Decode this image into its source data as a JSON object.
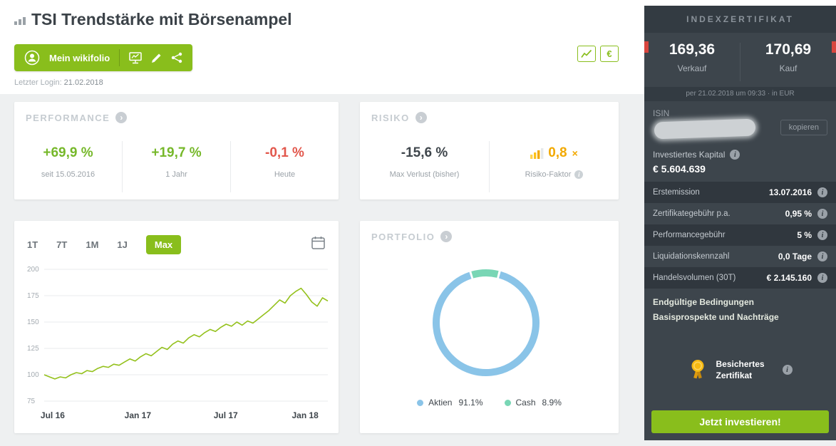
{
  "colors": {
    "brand_green": "#89be1c",
    "positive_green": "#76b82a",
    "negative_red": "#e2574c",
    "risk_orange": "#f2a900",
    "aktien_blue": "#8ac4e8",
    "cash_teal": "#79d6b5",
    "sidebar_bg": "#3d454c",
    "ribbon_red": "#d8453e"
  },
  "header": {
    "title": "TSI Trendstärke mit Börsenampel",
    "my_wikifolio_label": "Mein wikifolio",
    "last_login_label": "Letzter Login:",
    "last_login_value": "21.02.2018",
    "euro_symbol": "€"
  },
  "performance": {
    "header": "PERFORMANCE",
    "items": [
      {
        "value": "+69,9 %",
        "label": "seit 15.05.2016"
      },
      {
        "value": "+19,7 %",
        "label": "1 Jahr"
      },
      {
        "value": "-0,1 %",
        "label": "Heute"
      }
    ]
  },
  "risiko": {
    "header": "RISIKO",
    "max_loss_value": "-15,6 %",
    "max_loss_label": "Max Verlust (bisher)",
    "risk_factor_value": "0,8",
    "risk_factor_multiplier": "×",
    "risk_factor_label": "Risiko-Faktor"
  },
  "chart_card": {
    "ranges": [
      "1T",
      "7T",
      "1M",
      "1J",
      "Max"
    ],
    "active_range": "Max"
  },
  "portfolio": {
    "header": "PORTFOLIO"
  },
  "sidebar": {
    "header": "INDEXZERTIFIKAT",
    "sell": {
      "value": "169,36",
      "label": "Verkauf"
    },
    "buy": {
      "value": "170,69",
      "label": "Kauf"
    },
    "quote_info": "per 21.02.2018 um 09:33 · in EUR",
    "isin_label": "ISIN",
    "copy_button": "kopieren",
    "invested_label": "Investiertes Kapital",
    "invested_value": "€ 5.604.639",
    "rows": [
      {
        "label": "Erstemission",
        "value": "13.07.2016"
      },
      {
        "label": "Zertifikategebühr p.a.",
        "value": "0,95 %"
      },
      {
        "label": "Performancegebühr",
        "value": "5 %"
      },
      {
        "label": "Liquidationskennzahl",
        "value": "0,0 Tage"
      },
      {
        "label": "Handelsvolumen (30T)",
        "value": "€ 2.145.160"
      }
    ],
    "links": [
      "Endgültige Bedingungen",
      "Basisprospekte und Nachträge"
    ],
    "secured_label": "Besichertes Zertifikat",
    "invest_button": "Jetzt investieren!"
  },
  "chart_data": [
    {
      "type": "line",
      "title": "Performance seit Emission (indexiert, Start = 100)",
      "color": "#94c11c",
      "ylim": [
        75,
        200
      ],
      "y_ticks": [
        200,
        175,
        150,
        125,
        100,
        75
      ],
      "x_ticks": [
        {
          "label": "Jul 16",
          "pos": 0.03
        },
        {
          "label": "Jan 17",
          "pos": 0.33
        },
        {
          "label": "Jul 17",
          "pos": 0.64
        },
        {
          "label": "Jan 18",
          "pos": 0.92
        }
      ],
      "values": [
        100,
        98,
        96,
        98,
        97,
        100,
        102,
        101,
        104,
        103,
        106,
        108,
        107,
        110,
        109,
        112,
        115,
        113,
        117,
        120,
        118,
        122,
        126,
        124,
        129,
        132,
        130,
        135,
        138,
        136,
        140,
        143,
        141,
        145,
        148,
        146,
        150,
        147,
        151,
        149,
        153,
        157,
        161,
        166,
        171,
        168,
        175,
        179,
        182,
        176,
        169,
        165,
        173,
        170
      ],
      "grid": true,
      "legend_position": "none"
    },
    {
      "type": "pie",
      "donut": true,
      "labels": [
        "Aktien",
        "Cash"
      ],
      "values": [
        91.1,
        8.9
      ],
      "display": [
        "91.1%",
        "8.9%"
      ],
      "colors": [
        "#8ac4e8",
        "#79d6b5"
      ],
      "legend_position": "bottom"
    }
  ]
}
